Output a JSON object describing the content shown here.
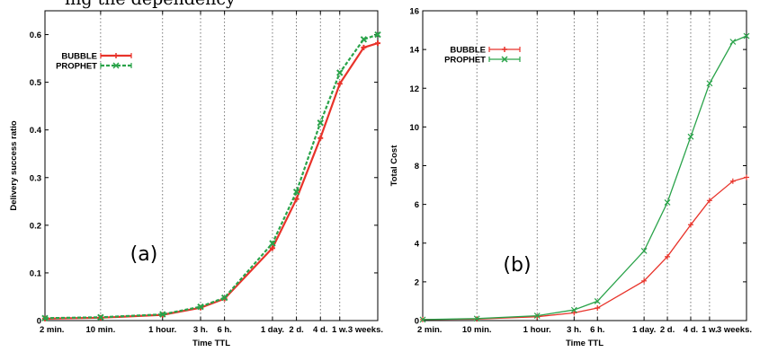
{
  "caption_fragment": "ing the dependency",
  "chart_data": [
    {
      "type": "line",
      "panel_label": "(a)",
      "xlabel": "Time TTL",
      "ylabel": "Delivery success ratio",
      "categories": [
        "2 min.",
        "10 min.",
        "1 hour.",
        "3 h.",
        "6 h.",
        "1 day.",
        "2 d.",
        "4 d.",
        "1 w.",
        "3 weeks."
      ],
      "x_log_seconds": [
        120,
        600,
        3600,
        10800,
        21600,
        86400,
        172800,
        345600,
        604800,
        1814400
      ],
      "ylim": [
        0,
        0.65
      ],
      "yticks": [
        "0",
        "0.1",
        "0.2",
        "0.3",
        "0.4",
        "0.5",
        "0.6"
      ],
      "grid": "vertical dotted lines at x ticks",
      "legend_position": "top-left",
      "series": [
        {
          "name": "BUBBLE",
          "color": "#e8332a",
          "x": [
            120,
            600,
            3600,
            10800,
            21600,
            86400,
            172800,
            345600,
            604800,
            1209600,
            1814400
          ],
          "values": [
            0.004,
            0.006,
            0.012,
            0.027,
            0.046,
            0.152,
            0.255,
            0.383,
            0.497,
            0.573,
            0.582
          ]
        },
        {
          "name": "PROPHET",
          "color": "#2aa34a",
          "x": [
            120,
            600,
            3600,
            10800,
            21600,
            86400,
            172800,
            345600,
            604800,
            1209600,
            1814400
          ],
          "values": [
            0.005,
            0.007,
            0.013,
            0.029,
            0.048,
            0.162,
            0.27,
            0.415,
            0.52,
            0.59,
            0.6
          ]
        }
      ]
    },
    {
      "type": "line",
      "panel_label": "(b)",
      "xlabel": "Time TTL",
      "ylabel": "Total Cost",
      "categories": [
        "2 min.",
        "10 min.",
        "1 hour.",
        "3 h.",
        "6 h.",
        "1 day.",
        "2 d.",
        "4 d.",
        "1 w.",
        "3 weeks."
      ],
      "x_log_seconds": [
        120,
        600,
        3600,
        10800,
        21600,
        86400,
        172800,
        345600,
        604800,
        1814400
      ],
      "ylim": [
        0,
        16
      ],
      "yticks": [
        "0",
        "2",
        "4",
        "6",
        "8",
        "10",
        "12",
        "14",
        "16"
      ],
      "grid": "vertical dotted lines at x ticks",
      "legend_position": "top-left",
      "series": [
        {
          "name": "BUBBLE",
          "color": "#e8332a",
          "x": [
            120,
            600,
            3600,
            10800,
            21600,
            86400,
            172800,
            345600,
            604800,
            1209600,
            1814400
          ],
          "values": [
            0.05,
            0.08,
            0.2,
            0.4,
            0.65,
            2.05,
            3.3,
            4.95,
            6.2,
            7.2,
            7.4
          ]
        },
        {
          "name": "PROPHET",
          "color": "#2aa34a",
          "x": [
            120,
            600,
            3600,
            10800,
            21600,
            86400,
            172800,
            345600,
            604800,
            1209600,
            1814400
          ],
          "values": [
            0.05,
            0.1,
            0.25,
            0.55,
            1.0,
            3.6,
            6.1,
            9.5,
            12.25,
            14.4,
            14.7
          ]
        }
      ]
    }
  ]
}
